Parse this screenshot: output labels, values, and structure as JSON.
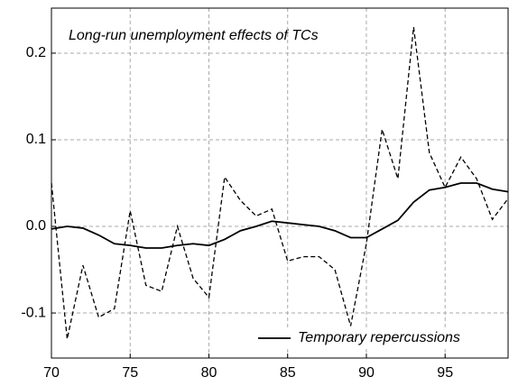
{
  "chart_data": {
    "type": "line",
    "title": "Long-run unemployment effects of TCs",
    "x": [
      70,
      71,
      72,
      73,
      74,
      75,
      76,
      77,
      78,
      79,
      80,
      81,
      82,
      83,
      84,
      85,
      86,
      87,
      88,
      89,
      90,
      91,
      92,
      93,
      94,
      95,
      96,
      97,
      98,
      99
    ],
    "series": [
      {
        "color": "#000000",
        "dashed": true,
        "values": [
          0.05,
          -0.13,
          -0.045,
          -0.105,
          -0.095,
          0.018,
          -0.068,
          -0.075,
          0.0,
          -0.06,
          -0.082,
          0.057,
          0.03,
          0.012,
          0.02,
          -0.04,
          -0.035,
          -0.035,
          -0.05,
          -0.115,
          -0.02,
          0.112,
          0.055,
          0.23,
          0.085,
          0.045,
          0.08,
          0.055,
          0.008,
          0.032
        ]
      },
      {
        "name": "Temporary repercussions",
        "color": "#000000",
        "dashed": false,
        "values": [
          -0.003,
          0.0,
          -0.002,
          -0.01,
          -0.02,
          -0.022,
          -0.025,
          -0.025,
          -0.022,
          -0.02,
          -0.022,
          -0.015,
          -0.005,
          0.0,
          0.006,
          0.004,
          0.002,
          0.0,
          -0.005,
          -0.013,
          -0.013,
          -0.003,
          0.007,
          0.028,
          0.042,
          0.045,
          0.05,
          0.05,
          0.043,
          0.04
        ]
      }
    ],
    "xlim": [
      70,
      99
    ],
    "xticks": [
      70,
      75,
      80,
      85,
      90,
      95
    ],
    "ylim": [
      -0.152,
      0.252
    ],
    "yticks": [
      0.2,
      0.1,
      {
        "value": 0,
        "label": "0.0"
      },
      -0.1
    ],
    "grid": true,
    "legend": "bottom-right"
  }
}
